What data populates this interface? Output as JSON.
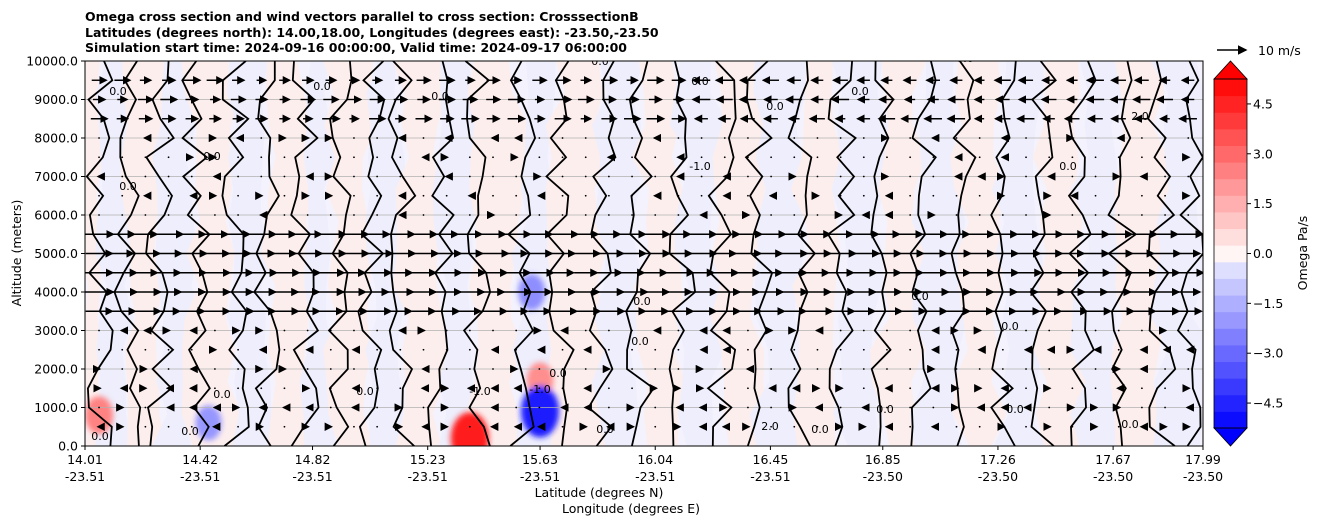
{
  "chart_data": {
    "type": "heatmap",
    "title_lines": [
      "Omega cross section and wind vectors parallel to cross section: CrosssectionB",
      "Latitudes (degrees north): 14.00,18.00, Longitudes (degrees east): -23.50,-23.50",
      "Simulation start time: 2024-09-16 00:00:00, Valid time: 2024-09-17 06:00:00"
    ],
    "ylabel": "Altitude (meters)",
    "xlabel_1": "Latitude (degrees N)",
    "xlabel_2": "Longitude (degrees E)",
    "ylim": [
      0,
      10000
    ],
    "y_ticks": [
      "0.0",
      "1000.0",
      "2000.0",
      "3000.0",
      "4000.0",
      "5000.0",
      "6000.0",
      "7000.0",
      "8000.0",
      "9000.0",
      "10000.0"
    ],
    "x_ticks": [
      {
        "lat": "14.01",
        "lon": "-23.51"
      },
      {
        "lat": "14.42",
        "lon": "-23.51"
      },
      {
        "lat": "14.82",
        "lon": "-23.51"
      },
      {
        "lat": "15.23",
        "lon": "-23.51"
      },
      {
        "lat": "15.63",
        "lon": "-23.51"
      },
      {
        "lat": "16.04",
        "lon": "-23.51"
      },
      {
        "lat": "16.45",
        "lon": "-23.51"
      },
      {
        "lat": "16.85",
        "lon": "-23.50"
      },
      {
        "lat": "17.26",
        "lon": "-23.50"
      },
      {
        "lat": "17.67",
        "lon": "-23.50"
      },
      {
        "lat": "17.99",
        "lon": "-23.50"
      }
    ],
    "colorbar": {
      "label": "Omega Pa/s",
      "ticks": [
        "4.5",
        "3.0",
        "1.5",
        "0.0",
        "−1.5",
        "−3.0",
        "−4.5"
      ],
      "range": [
        -5.25,
        5.25
      ],
      "extend": "both"
    },
    "vector_key": {
      "label": "10 m/s"
    },
    "contour_labels": [
      "0.0",
      "-1.0",
      "1.0",
      "2.0",
      "-2.0"
    ],
    "grid": true,
    "features": [
      {
        "type": "max",
        "lat": 15.38,
        "alt": 200,
        "omega": 5.0
      },
      {
        "type": "max",
        "lat": 14.06,
        "alt": 800,
        "omega": 2.5
      },
      {
        "type": "max",
        "lat": 15.63,
        "alt": 1700,
        "omega": 2.2
      },
      {
        "type": "min",
        "lat": 15.63,
        "alt": 900,
        "omega": -5.0
      },
      {
        "type": "min",
        "lat": 15.6,
        "alt": 4000,
        "omega": -2.2
      },
      {
        "type": "min",
        "lat": 14.45,
        "alt": 600,
        "omega": -2.0
      }
    ]
  }
}
